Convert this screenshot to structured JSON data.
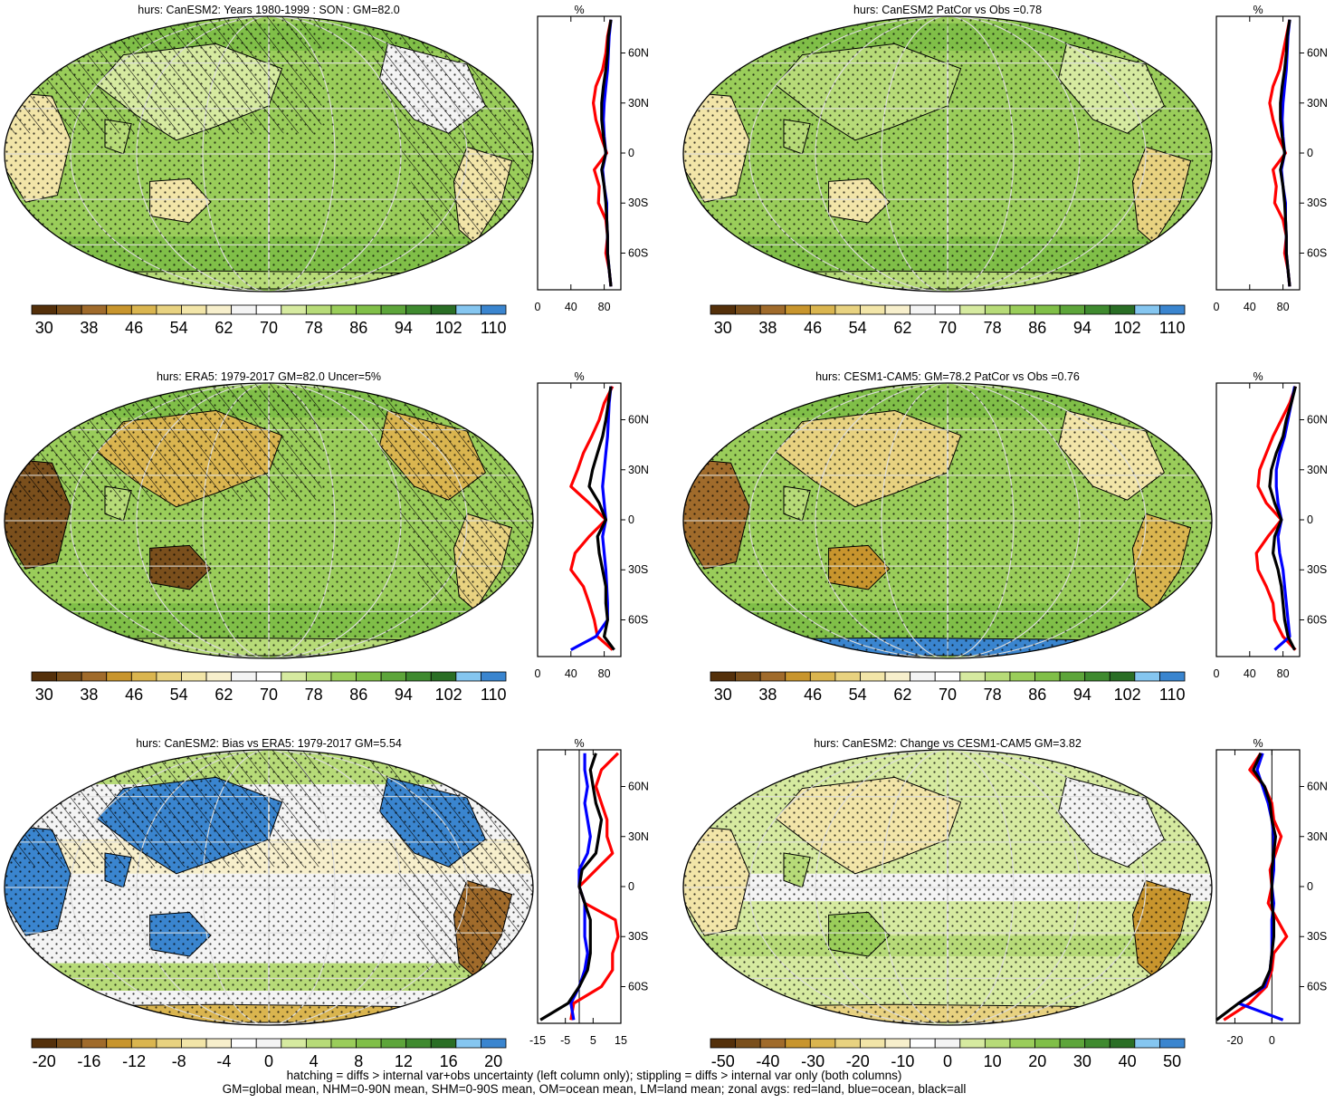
{
  "figure": {
    "footer_line1": "hatching = diffs > internal var+obs uncertainty (left column only); stippling = diffs > internal var only (both columns)",
    "footer_line2": "GM=global mean, NHM=0-90N mean, SHM=0-90S mean, OM=ocean mean, LM=land mean; zonal avgs: red=land, blue=ocean, black=all"
  },
  "colors": {
    "climatology_palette": [
      "#54300a",
      "#7a4f1c",
      "#a06b2b",
      "#c8952d",
      "#dab54f",
      "#e8d280",
      "#f2e5a8",
      "#f7efcc",
      "#f4f4f4",
      "#ffffff",
      "#d6eaa0",
      "#b7db78",
      "#9acd5a",
      "#80bf48",
      "#5da53a",
      "#3f8a2f",
      "#2a6e25",
      "#85c6f0",
      "#3a85cf"
    ],
    "bias_palette": [
      "#54300a",
      "#7a4f1c",
      "#a06b2b",
      "#c8952d",
      "#dab54f",
      "#e8d280",
      "#f2e5a8",
      "#f7efcc",
      "#ffffff",
      "#f4f4f4",
      "#d6eaa0",
      "#b7db78",
      "#9acd5a",
      "#80bf48",
      "#5da53a",
      "#3f8a2f",
      "#2a6e25",
      "#85c6f0",
      "#3a85cf"
    ],
    "zonal_land": "#ff0000",
    "zonal_ocean": "#0000ff",
    "zonal_all": "#000000"
  },
  "chart_data": [
    {
      "type": "heatmap",
      "title": "hurs: CanESM2: Years 1980-1999 : SON : GM=82.0",
      "map_style": "clim",
      "hatched": true,
      "colorbar_labels": [
        "30",
        "38",
        "46",
        "54",
        "62",
        "70",
        "78",
        "86",
        "94",
        "102",
        "110"
      ],
      "zonal": {
        "unit_label": "%",
        "xlim": [
          0,
          100
        ],
        "xticks": [
          "0",
          "40",
          "80"
        ],
        "lat_labels": [
          "60N",
          "30N",
          "0",
          "30S",
          "60S"
        ],
        "lat": [
          -80,
          -70,
          -60,
          -50,
          -40,
          -30,
          -20,
          -10,
          0,
          10,
          20,
          30,
          40,
          50,
          60,
          70,
          80
        ],
        "land": [
          88,
          86,
          82,
          84,
          82,
          73,
          74,
          68,
          83,
          76,
          70,
          67,
          70,
          78,
          82,
          84,
          88
        ],
        "ocean": [
          88,
          86,
          84,
          84,
          83,
          83,
          80,
          78,
          82,
          80,
          79,
          80,
          82,
          84,
          85,
          86,
          88
        ],
        "all": [
          88,
          86,
          84,
          84,
          83,
          82,
          80,
          77,
          82,
          79,
          77,
          77,
          79,
          82,
          84,
          85,
          88
        ]
      }
    },
    {
      "type": "heatmap",
      "title": "hurs: CanESM2 PatCor vs Obs =0.78",
      "map_style": "clim_light",
      "hatched": false,
      "colorbar_labels": [
        "30",
        "38",
        "46",
        "54",
        "62",
        "70",
        "78",
        "86",
        "94",
        "102",
        "110"
      ],
      "zonal": {
        "unit_label": "%",
        "xlim": [
          0,
          100
        ],
        "xticks": [
          "0",
          "40",
          "80"
        ],
        "lat_labels": [
          "60N",
          "30N",
          "0",
          "30S",
          "60S"
        ],
        "lat": [
          -80,
          -70,
          -60,
          -50,
          -40,
          -30,
          -20,
          -10,
          0,
          10,
          20,
          30,
          40,
          50,
          60,
          70,
          80
        ],
        "land": [
          88,
          86,
          82,
          84,
          80,
          70,
          72,
          68,
          83,
          74,
          68,
          64,
          68,
          76,
          80,
          84,
          88
        ],
        "ocean": [
          88,
          86,
          84,
          84,
          83,
          83,
          80,
          78,
          82,
          80,
          79,
          80,
          82,
          84,
          85,
          86,
          88
        ],
        "all": [
          88,
          86,
          84,
          84,
          83,
          82,
          80,
          77,
          82,
          79,
          77,
          77,
          79,
          82,
          84,
          85,
          88
        ]
      }
    },
    {
      "type": "heatmap",
      "title": "hurs: ERA5: 1979-2017 GM=82.0 Uncer=5%",
      "map_style": "era",
      "hatched": true,
      "colorbar_labels": [
        "30",
        "38",
        "46",
        "54",
        "62",
        "70",
        "78",
        "86",
        "94",
        "102",
        "110"
      ],
      "zonal": {
        "unit_label": "%",
        "xlim": [
          0,
          100
        ],
        "xticks": [
          "0",
          "40",
          "80"
        ],
        "lat_labels": [
          "60N",
          "30N",
          "0",
          "30S",
          "60S"
        ],
        "lat": [
          -78,
          -70,
          -60,
          -50,
          -40,
          -30,
          -20,
          -10,
          0,
          10,
          20,
          30,
          40,
          50,
          60,
          70,
          80
        ],
        "land": [
          90,
          72,
          68,
          62,
          55,
          40,
          45,
          62,
          82,
          62,
          40,
          48,
          55,
          65,
          74,
          80,
          90
        ],
        "ocean": [
          40,
          70,
          84,
          84,
          83,
          82,
          80,
          78,
          82,
          80,
          78,
          80,
          82,
          84,
          85,
          86,
          88
        ],
        "all": [
          92,
          80,
          84,
          82,
          82,
          78,
          74,
          72,
          82,
          74,
          62,
          66,
          72,
          78,
          82,
          85,
          88
        ]
      }
    },
    {
      "type": "heatmap",
      "title": "hurs: CESM1-CAM5: GM=78.2 PatCor vs Obs =0.76",
      "map_style": "cesm",
      "hatched": false,
      "colorbar_labels": [
        "30",
        "38",
        "46",
        "54",
        "62",
        "70",
        "78",
        "86",
        "94",
        "102",
        "110"
      ],
      "zonal": {
        "unit_label": "%",
        "xlim": [
          0,
          100
        ],
        "xticks": [
          "0",
          "40",
          "80"
        ],
        "lat_labels": [
          "60N",
          "30N",
          "0",
          "30S",
          "60S"
        ],
        "lat": [
          -78,
          -70,
          -60,
          -50,
          -40,
          -30,
          -20,
          -10,
          0,
          10,
          20,
          30,
          40,
          50,
          60,
          70,
          80
        ],
        "land": [
          95,
          80,
          70,
          68,
          60,
          50,
          48,
          62,
          78,
          60,
          50,
          52,
          60,
          68,
          78,
          88,
          95
        ],
        "ocean": [
          70,
          88,
          86,
          84,
          82,
          80,
          76,
          74,
          78,
          74,
          72,
          72,
          76,
          82,
          86,
          90,
          94
        ],
        "all": [
          94,
          86,
          82,
          80,
          78,
          74,
          68,
          70,
          78,
          70,
          64,
          66,
          72,
          80,
          84,
          90,
          95
        ]
      }
    },
    {
      "type": "heatmap",
      "title": "hurs: CanESM2: Bias vs ERA5: 1979-2017  GM=5.54",
      "map_style": "bias",
      "hatched": true,
      "colorbar_labels": [
        "-20",
        "-16",
        "-12",
        "-8",
        "-4",
        "0",
        "4",
        "8",
        "12",
        "16",
        "20"
      ],
      "zonal": {
        "unit_label": "%",
        "xlim": [
          -15,
          15
        ],
        "xticks": [
          "-15",
          "-5",
          "5",
          "15"
        ],
        "lat_labels": [
          "60N",
          "30N",
          "0",
          "30S",
          "60S"
        ],
        "lat": [
          -80,
          -70,
          -60,
          -50,
          -40,
          -30,
          -20,
          -10,
          0,
          10,
          20,
          30,
          40,
          50,
          60,
          70,
          80
        ],
        "land": [
          -3,
          -2,
          8,
          12,
          12,
          14,
          13,
          2,
          0,
          6,
          12,
          10,
          10,
          8,
          6,
          8,
          14
        ],
        "ocean": [
          -2,
          -3,
          0,
          2,
          3,
          2,
          2,
          2,
          0,
          0,
          3,
          4,
          3,
          2,
          3,
          2,
          2
        ],
        "all": [
          -14,
          -4,
          0,
          3,
          4,
          4,
          4,
          2,
          0,
          1,
          6,
          7,
          8,
          6,
          5,
          4,
          6
        ]
      }
    },
    {
      "type": "heatmap",
      "title": "hurs: CanESM2: Change vs CESM1-CAM5 GM=3.82",
      "map_style": "change",
      "hatched": false,
      "colorbar_labels": [
        "-50",
        "-40",
        "-30",
        "-20",
        "-10",
        "0",
        "10",
        "20",
        "30",
        "40",
        "50"
      ],
      "zonal": {
        "unit_label": "%",
        "xlim": [
          -30,
          15
        ],
        "xticks": [
          "-20",
          "0"
        ],
        "lat_labels": [
          "60N",
          "30N",
          "0",
          "30S",
          "60S"
        ],
        "lat": [
          -80,
          -70,
          -60,
          -50,
          -40,
          -30,
          -20,
          -10,
          0,
          10,
          20,
          30,
          40,
          50,
          60,
          70,
          80
        ],
        "land": [
          -26,
          -12,
          -3,
          0,
          1,
          8,
          3,
          -2,
          0,
          -1,
          2,
          5,
          1,
          0,
          -4,
          -12,
          -6
        ],
        "ocean": [
          6,
          -18,
          -4,
          -1,
          0,
          0,
          0,
          1,
          0,
          1,
          1,
          1,
          0,
          -2,
          -5,
          -8,
          -5
        ],
        "all": [
          -30,
          -18,
          -5,
          -1,
          0,
          1,
          1,
          0,
          0,
          0,
          1,
          2,
          0,
          -1,
          -4,
          -10,
          -6
        ]
      }
    }
  ]
}
